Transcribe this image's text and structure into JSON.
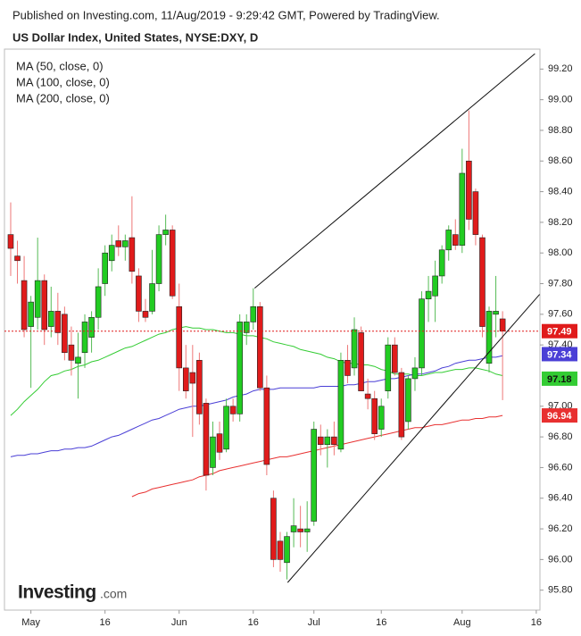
{
  "header": "Published on Investing.com, 11/Aug/2019 - 9:29:42 GMT, Powered by TradingView.",
  "logo": [
    "Investing",
    ".com"
  ],
  "chart_data": {
    "type": "candlestick",
    "title": "US Dollar Index, United States, NYSE:DXY, D",
    "categories": [
      null,
      null,
      null,
      "May",
      null,
      null,
      null,
      null,
      null,
      null,
      null,
      null,
      null,
      null,
      "16",
      null,
      null,
      null,
      null,
      null,
      null,
      null,
      null,
      null,
      null,
      "Jun",
      null,
      null,
      null,
      null,
      null,
      null,
      null,
      null,
      null,
      null,
      "16",
      null,
      null,
      null,
      null,
      null,
      null,
      null,
      null,
      "Jul",
      null,
      null,
      null,
      null,
      null,
      null,
      null,
      null,
      null,
      "16",
      null,
      null,
      null,
      null,
      null,
      null,
      null,
      null,
      null,
      null,
      null,
      "Aug",
      null,
      null,
      null,
      null,
      null,
      null,
      null,
      null,
      null,
      null,
      "16"
    ],
    "ylim": [
      95.67,
      99.33
    ],
    "yticks": [
      {
        "value": 95.8,
        "label": "95.80"
      },
      {
        "value": 96.0,
        "label": "96.00"
      },
      {
        "value": 96.2,
        "label": "96.20"
      },
      {
        "value": 96.4,
        "label": "96.40"
      },
      {
        "value": 96.6,
        "label": "96.60"
      },
      {
        "value": 96.8,
        "label": "96.80"
      },
      {
        "value": 97.0,
        "label": "97.00"
      },
      {
        "value": 97.4,
        "label": "97.40"
      },
      {
        "value": 97.6,
        "label": "97.60"
      },
      {
        "value": 97.8,
        "label": "97.80"
      },
      {
        "value": 98.0,
        "label": "98.00"
      },
      {
        "value": 98.2,
        "label": "98.20"
      },
      {
        "value": 98.4,
        "label": "98.40"
      },
      {
        "value": 98.6,
        "label": "98.60"
      },
      {
        "value": 98.8,
        "label": "98.80"
      },
      {
        "value": 99.0,
        "label": "99.00"
      },
      {
        "value": 99.2,
        "label": "99.20"
      }
    ],
    "candles": {
      "up_color": "#22cc22",
      "down_color": "#e01b1b",
      "last_value": 97.49,
      "last_label": "97.49",
      "open": [
        98.12,
        97.98,
        97.82,
        97.52,
        97.58,
        97.82,
        97.52,
        97.62,
        97.6,
        97.4,
        97.28,
        97.35,
        97.45,
        97.58,
        97.8,
        97.95,
        98.08,
        98.04,
        98.1,
        97.85,
        97.62,
        97.62,
        97.8,
        98.12,
        98.15,
        97.65,
        97.25,
        97.22,
        97.3,
        97.02,
        96.6,
        96.82,
        96.72,
        97.0,
        96.95,
        97.48,
        97.55,
        97.65,
        97.12,
        96.4,
        96.12,
        95.98,
        96.18,
        96.2,
        96.18,
        96.25,
        96.8,
        96.75,
        96.8,
        96.72,
        97.3,
        97.25,
        97.48,
        97.08,
        97.05,
        96.85,
        97.1,
        97.4,
        97.22,
        96.9,
        97.18,
        97.25,
        97.7,
        97.72,
        97.85,
        98.02,
        98.12,
        98.05,
        98.6,
        98.4,
        98.1,
        97.28,
        97.6,
        97.57,
        null,
        null,
        null,
        null,
        null
      ],
      "high": [
        98.33,
        98.08,
        97.98,
        97.72,
        98.1,
        97.86,
        97.78,
        97.74,
        97.65,
        97.52,
        97.48,
        97.6,
        97.62,
        97.9,
        98.05,
        98.12,
        98.18,
        98.12,
        98.37,
        97.9,
        97.7,
        98.02,
        98.18,
        98.25,
        98.18,
        97.8,
        97.4,
        97.4,
        97.35,
        97.05,
        96.9,
        96.9,
        97.05,
        97.05,
        97.6,
        97.6,
        97.77,
        97.68,
        97.2,
        96.45,
        96.18,
        96.18,
        96.4,
        96.35,
        96.38,
        96.9,
        96.88,
        96.85,
        96.9,
        97.35,
        97.4,
        97.58,
        97.52,
        97.18,
        97.1,
        97.05,
        97.45,
        97.45,
        97.25,
        97.2,
        97.32,
        97.75,
        97.85,
        97.95,
        98.05,
        98.18,
        98.22,
        98.68,
        98.93,
        98.42,
        98.12,
        97.65,
        97.85,
        97.62,
        null,
        null,
        null,
        null,
        null
      ],
      "low": [
        97.85,
        97.8,
        97.45,
        97.12,
        97.5,
        97.4,
        97.45,
        97.4,
        97.3,
        97.2,
        97.05,
        97.25,
        97.35,
        97.5,
        97.72,
        97.88,
        97.98,
        97.95,
        97.8,
        97.55,
        97.55,
        97.6,
        97.75,
        98.05,
        97.7,
        97.1,
        97.05,
        96.8,
        96.88,
        96.45,
        96.55,
        96.65,
        96.7,
        96.9,
        96.9,
        97.4,
        97.5,
        97.1,
        96.55,
        95.95,
        95.92,
        95.87,
        96.08,
        96.08,
        96.05,
        96.22,
        96.68,
        96.6,
        96.68,
        96.7,
        97.15,
        97.2,
        97.1,
        96.98,
        96.78,
        96.8,
        97.05,
        97.2,
        96.78,
        96.85,
        97.1,
        97.2,
        97.55,
        97.55,
        97.8,
        97.95,
        98.02,
        98.0,
        98.15,
        98.05,
        97.45,
        97.22,
        97.45,
        97.04,
        null,
        null,
        null,
        null,
        null
      ],
      "close": [
        98.03,
        97.95,
        97.5,
        97.68,
        97.82,
        97.5,
        97.62,
        97.48,
        97.35,
        97.3,
        97.32,
        97.55,
        97.58,
        97.78,
        98.0,
        98.05,
        98.04,
        98.08,
        97.88,
        97.62,
        97.58,
        97.8,
        98.12,
        98.15,
        97.72,
        97.25,
        97.1,
        97.15,
        96.95,
        96.55,
        96.8,
        96.7,
        97.0,
        96.95,
        97.55,
        97.55,
        97.65,
        97.12,
        96.62,
        96.0,
        96.0,
        96.15,
        96.22,
        96.18,
        96.2,
        96.85,
        96.75,
        96.8,
        96.75,
        97.3,
        97.2,
        97.5,
        97.1,
        97.05,
        96.82,
        97.0,
        97.4,
        97.22,
        96.8,
        97.18,
        97.25,
        97.7,
        97.75,
        97.85,
        98.02,
        98.15,
        98.05,
        98.52,
        98.22,
        98.12,
        97.52,
        97.62,
        97.62,
        97.49,
        null,
        null,
        null,
        null,
        null
      ]
    },
    "series": [
      {
        "name": "MA (50, close, 0)",
        "color": "#33cc33",
        "last_value": 97.18,
        "last_label": "97.18",
        "values": [
          96.94,
          96.98,
          97.03,
          97.07,
          97.11,
          97.16,
          97.2,
          97.21,
          97.23,
          97.24,
          97.26,
          97.27,
          97.29,
          97.3,
          97.32,
          97.34,
          97.36,
          97.38,
          97.39,
          97.41,
          97.43,
          97.45,
          97.47,
          97.48,
          97.5,
          97.51,
          97.52,
          97.51,
          97.51,
          97.5,
          97.5,
          97.49,
          97.48,
          97.48,
          97.47,
          97.46,
          97.46,
          97.45,
          97.44,
          97.42,
          97.41,
          97.4,
          97.39,
          97.37,
          97.36,
          97.35,
          97.34,
          97.32,
          97.31,
          97.29,
          97.28,
          97.28,
          97.27,
          97.27,
          97.26,
          97.24,
          97.23,
          97.21,
          97.21,
          97.21,
          97.2,
          97.2,
          97.21,
          97.22,
          97.22,
          97.23,
          97.24,
          97.24,
          97.25,
          97.25,
          97.24,
          97.23,
          97.21,
          97.2,
          null,
          null,
          null,
          null,
          null
        ]
      },
      {
        "name": "MA (100, close, 0)",
        "color": "#4a3fd6",
        "last_value": 97.34,
        "last_label": "97.34",
        "values": [
          96.67,
          96.68,
          96.68,
          96.69,
          96.69,
          96.7,
          96.71,
          96.71,
          96.72,
          96.72,
          96.73,
          96.73,
          96.74,
          96.76,
          96.78,
          96.8,
          96.81,
          96.83,
          96.85,
          96.87,
          96.89,
          96.91,
          96.92,
          96.94,
          96.96,
          96.98,
          96.99,
          97.0,
          97.0,
          97.01,
          97.02,
          97.03,
          97.04,
          97.06,
          97.07,
          97.08,
          97.1,
          97.11,
          97.11,
          97.11,
          97.12,
          97.12,
          97.12,
          97.12,
          97.12,
          97.12,
          97.13,
          97.13,
          97.13,
          97.13,
          97.14,
          97.14,
          97.15,
          97.16,
          97.16,
          97.17,
          97.18,
          97.18,
          97.19,
          97.2,
          97.21,
          97.21,
          97.22,
          97.23,
          97.25,
          97.26,
          97.28,
          97.29,
          97.3,
          97.3,
          97.31,
          97.32,
          97.32,
          97.33,
          null,
          null,
          null,
          null,
          null
        ]
      },
      {
        "name": "MA (200, close, 0)",
        "color": "#e83030",
        "last_value": 96.94,
        "last_label": "96.94",
        "values": [
          null,
          null,
          null,
          null,
          null,
          null,
          null,
          null,
          null,
          null,
          null,
          null,
          null,
          null,
          null,
          null,
          null,
          null,
          96.41,
          96.43,
          96.44,
          96.46,
          96.47,
          96.48,
          96.49,
          96.5,
          96.51,
          96.52,
          96.54,
          96.55,
          96.56,
          96.58,
          96.59,
          96.6,
          96.61,
          96.62,
          96.63,
          96.64,
          96.65,
          96.66,
          96.67,
          96.67,
          96.68,
          96.69,
          96.7,
          96.71,
          96.72,
          96.73,
          96.74,
          96.75,
          96.76,
          96.77,
          96.78,
          96.79,
          96.8,
          96.81,
          96.82,
          96.83,
          96.84,
          96.85,
          96.86,
          96.86,
          96.87,
          96.88,
          96.88,
          96.89,
          96.9,
          96.91,
          96.91,
          96.92,
          96.92,
          96.93,
          96.93,
          96.94,
          null,
          null,
          null,
          null,
          null
        ]
      }
    ],
    "trendlines": [
      {
        "x": [
          36.2,
          77.8
        ],
        "y": [
          97.77,
          99.3
        ]
      },
      {
        "x": [
          41.1,
          78.5
        ],
        "y": [
          95.85,
          97.73
        ]
      }
    ]
  }
}
